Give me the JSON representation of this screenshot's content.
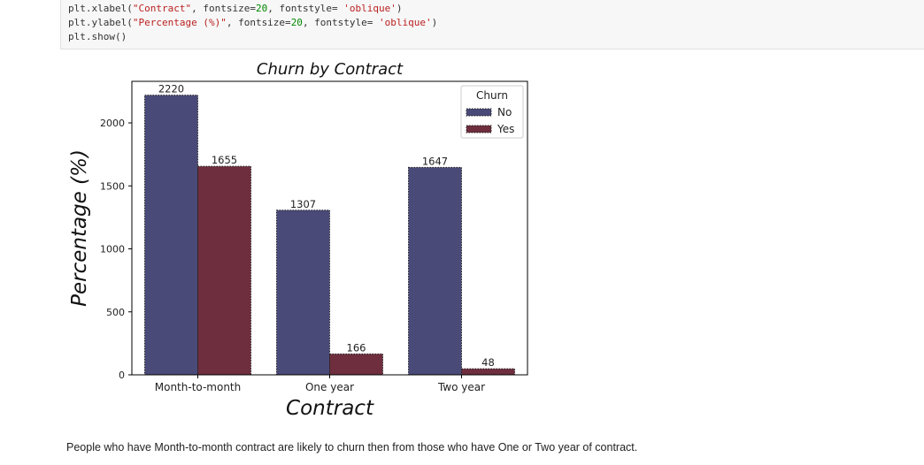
{
  "code": {
    "lines": [
      {
        "parts": [
          {
            "t": "plt.xlabel(",
            "c": ""
          },
          {
            "t": "\"Contract\"",
            "c": "str"
          },
          {
            "t": ", fontsize=",
            "c": ""
          },
          {
            "t": "20",
            "c": "num"
          },
          {
            "t": ", fontstyle= ",
            "c": ""
          },
          {
            "t": "'oblique'",
            "c": "str"
          },
          {
            "t": ")",
            "c": ""
          }
        ]
      },
      {
        "parts": [
          {
            "t": "plt.ylabel(",
            "c": ""
          },
          {
            "t": "\"Percentage (%)\"",
            "c": "str"
          },
          {
            "t": ", fontsize=",
            "c": ""
          },
          {
            "t": "20",
            "c": "num"
          },
          {
            "t": ", fontstyle= ",
            "c": ""
          },
          {
            "t": "'oblique'",
            "c": "str"
          },
          {
            "t": ")",
            "c": ""
          }
        ]
      },
      {
        "parts": [
          {
            "t": "plt.show()",
            "c": ""
          }
        ]
      }
    ]
  },
  "chart_data": {
    "type": "bar",
    "title": "Churn by Contract",
    "xlabel": "Contract",
    "ylabel": "Percentage (%)",
    "categories": [
      "Month-to-month",
      "One year",
      "Two year"
    ],
    "series": [
      {
        "name": "No",
        "values": [
          2220,
          1307,
          1647
        ],
        "color": "#4a4a78"
      },
      {
        "name": "Yes",
        "values": [
          1655,
          166,
          48
        ],
        "color": "#6e2e3e"
      }
    ],
    "ylim": [
      0,
      2330
    ],
    "yticks": [
      0,
      500,
      1000,
      1500,
      2000
    ],
    "legend": {
      "title": "Churn",
      "position": "top-right"
    },
    "grid": false
  },
  "note": "People who have Month-to-month contract are likely to churn then from those who have One or Two year of contract."
}
